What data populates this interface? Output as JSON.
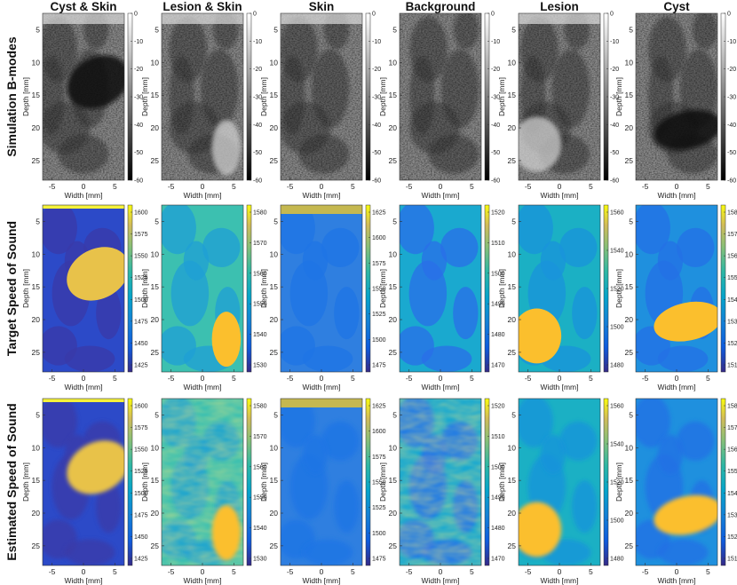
{
  "columns": [
    "Cyst & Skin",
    "Lesion & Skin",
    "Skin",
    "Background",
    "Lesion",
    "Cyst"
  ],
  "rows": [
    "Simulation B-modes",
    "Target Speed of Sound",
    "Estimated Speed of Sound"
  ],
  "chart_data": {
    "type": "heatmap",
    "grid": {
      "rows": 3,
      "cols": 6
    },
    "xlabel": "Width [mm]",
    "ylabel": "Depth [mm]",
    "x_ticks": [
      -5,
      0,
      5
    ],
    "y_ticks": [
      5,
      10,
      15,
      20,
      25
    ],
    "xlim": [
      -6.5,
      6.5
    ],
    "ylim": [
      28,
      2.5
    ],
    "bmode_colorbar_ticks": [
      0,
      -10,
      -20,
      -30,
      -40,
      -50,
      -60
    ],
    "sos_colorbar_ticks": [
      [
        1600,
        1575,
        1550,
        1525,
        1500,
        1475,
        1450,
        1425
      ],
      [
        1580,
        1570,
        1560,
        1550,
        1540,
        1530
      ],
      [
        1625,
        1600,
        1575,
        1550,
        1525,
        1500,
        1475
      ],
      [
        1520,
        1510,
        1500,
        1490,
        1480,
        1470
      ],
      [
        1560,
        1540,
        1520,
        1500,
        1480
      ],
      [
        1580,
        1570,
        1560,
        1550,
        1540,
        1530,
        1520,
        1510
      ]
    ],
    "inclusions": [
      {
        "column": "Cyst & Skin",
        "shape": "ellipse",
        "center_mm": [
          2.3,
          13
        ],
        "radii_mm": [
          5.2,
          3.8
        ],
        "rotation_deg": -28
      },
      {
        "column": "Lesion & Skin",
        "shape": "ellipse",
        "center_mm": [
          3.8,
          23
        ],
        "radii_mm": [
          2.3,
          4.2
        ],
        "rotation_deg": 0
      },
      {
        "column": "Lesion",
        "shape": "ellipse",
        "center_mm": [
          -3.6,
          22.5
        ],
        "radii_mm": [
          3.9,
          4.2
        ],
        "rotation_deg": 0
      },
      {
        "column": "Cyst",
        "shape": "ellipse",
        "center_mm": [
          1.8,
          20.3
        ],
        "radii_mm": [
          5.5,
          2.9
        ],
        "rotation_deg": -12
      }
    ],
    "skin_layer_columns": [
      "Cyst & Skin",
      "Lesion & Skin",
      "Skin"
    ]
  }
}
